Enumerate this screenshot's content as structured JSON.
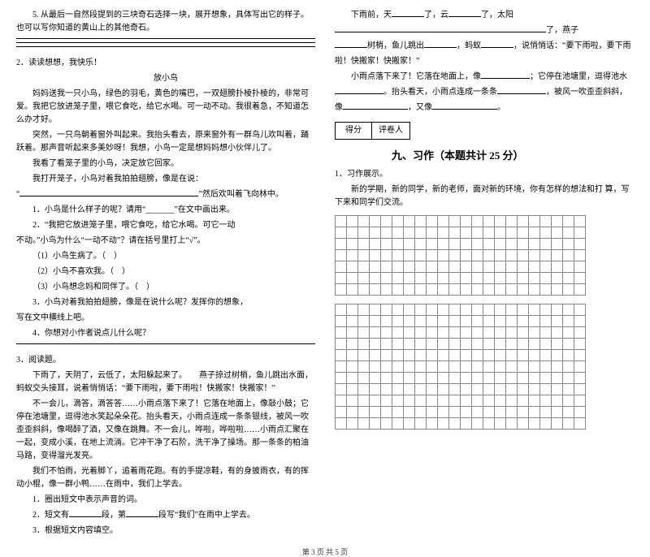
{
  "left": {
    "q5": "5. 从最后一自然段提到的三块奇石选择一块，展开想象，具体写出它的样子。也可以写你知道的黄山上的其他奇石。",
    "s2_title": "2．读读想想，我快乐！",
    "s2_story_title": "放小鸟",
    "s2_p1": "妈妈送我一只小鸟，绿色的羽毛，黄色的嘴巴，一双翅膀扑棱扑棱的，非常可爱。我把它放进笼子里，喂它食吃，给它水喝。可一动不动。我很着急，不知道怎么办才好。",
    "s2_p2": "突然，一只鸟朝着窗外叫起来。我抬头看去，原来窗外有一群鸟儿欢叫着，踊跃着。那声音听起来多美妙呀！我想，小鸟一定是想妈妈想小伙伴儿了。",
    "s2_p3": "我看了看笼子里的小鸟，决定放它回家。",
    "s2_p4": "我打开笼子，小鸟对着我拍拍翅膀，像是在说：",
    "s2_quote_prefix": "“",
    "s2_quote_suffix": "”然后欢叫着飞向林中。",
    "s2_q1": "1．小鸟是什么样子的呢？请用“_______”在文中画出来。",
    "s2_q2a": "2．“我把它放进笼子里，喂它食吃，给它水喝。可它一动",
    "s2_q2b": "不动。”小鸟为什么“一动不动”？请在括号里打上“√”。",
    "s2_opt1": "（1）小鸟生病了。（　）",
    "s2_opt2": "（2）小鸟不喜欢我。（　）",
    "s2_opt3": "（3）小鸟想念妈和同伴了。（　）",
    "s2_q3a": "3．小鸟对着我拍拍翅膀，像是在说什么呢？发挥你的想象，",
    "s2_q3b": "写在文中横线上吧。",
    "s2_q4": "4．你想对小作者说点儿什么呢？",
    "s3_title": "3．阅读题。",
    "s3_p1": "下雨了，天阴了，云低了，太阳躲起来了。　　燕子掠过树梢，鱼儿跳出水面，蚂蚁交头接耳，说着悄悄话：“要下雨啦，要下雨啦！快搬家！快搬家！”",
    "s3_p2": "不一会儿，滴答，滴答答……小雨点落下来了！它落在地面上，像敲小鼓；它停在池塘里，逗得池水笑起朵朵花。抬头看天，小雨点连成一条条银线，被风一吹歪歪斜斜，像喝醉了酒，又像在跳舞。不一会儿，哗啦，哗啦啦……小雨点汇聚在一起，变成小溪，在地上流淌。它冲干净了石阶，洗干净了操场。那一条条的柏油马路，变得溜光发亮。",
    "s3_p3": "我们不怕雨，光着脚丫，追着雨花跑。有的手提凉鞋，有的身披雨衣，有的挥动小棍，像一群小鸭……在雨中，我们上学去。",
    "s3_q1": "1．圈出短文中表示声音的词。",
    "s3_q2a": "2．短文有",
    "s3_q2b": "段，第",
    "s3_q2c": "段写“我们”在雨中上学去。",
    "s3_q3": "3．根据短文内容填空。"
  },
  "right": {
    "r1a": "下雨前，天",
    "r1b": "了，云",
    "r1c": "了，太阳",
    "r2a": "了，燕子",
    "r3a": "树梢，鱼儿跳出",
    "r3b": "，蚂蚁",
    "r3c": "，说悄悄话：“要下雨啦，要下雨",
    "r4": "啦！快搬家！快搬家！”",
    "r5a": "小雨点落下来了！它落在地面上，像",
    "r5b": "；它停在池塘里，逗得池水",
    "r6a": "。抬头看天，小雨点连成一条条",
    "r6b": "，被风一吹歪歪斜斜，",
    "r7a": "像",
    "r7b": "，又像",
    "r7c": "。",
    "score_l": "得分",
    "score_r": "评卷人",
    "section9": "九、习作（本题共计 25 分）",
    "xz1": "1．习作展示。",
    "xz2": "新的学期，新的同学，新的老师，面对新的环境，你有怎样的想法和打 算，写下来和同学们交流。"
  },
  "footer": "第 3 页 共 5 页",
  "style": {
    "grid_rows_a": 7,
    "grid_rows_b": 11,
    "grid_cols": 22,
    "grid_cell": 14,
    "grid_border": "#888888",
    "font_size": 10,
    "line_height": 1.6,
    "text_color": "#000000"
  }
}
